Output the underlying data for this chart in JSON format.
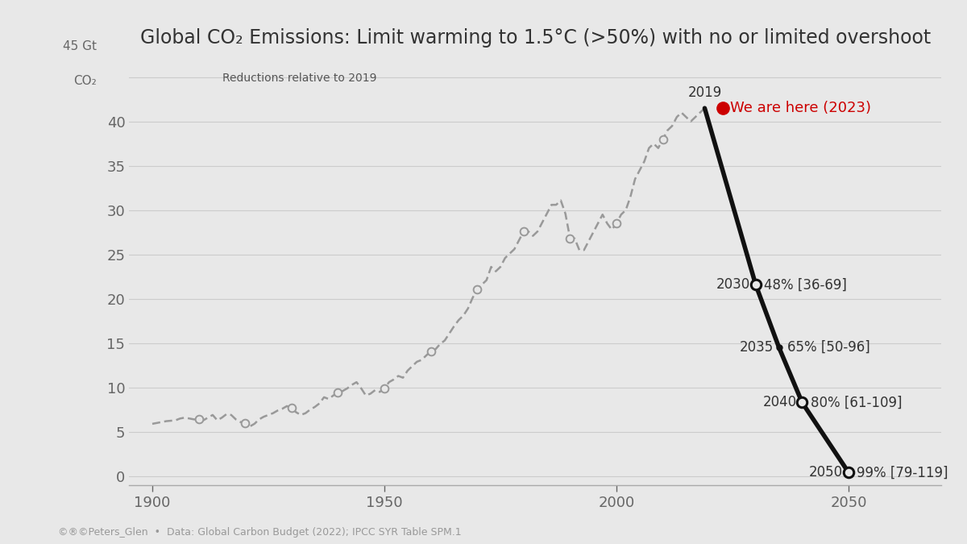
{
  "title": "Global CO₂ Emissions: Limit warming to 1.5°C (>50%) with no or limited overshoot",
  "subtitle": "Reductions relative to 2019",
  "footer": "©®©Peters_Glen  •  Data: Global Carbon Budget (2022); IPCC SYR Table SPM.1",
  "background_color": "#e8e8e8",
  "historical_years": [
    1900,
    1901,
    1902,
    1903,
    1904,
    1905,
    1906,
    1907,
    1908,
    1909,
    1910,
    1911,
    1912,
    1913,
    1914,
    1915,
    1916,
    1917,
    1918,
    1919,
    1920,
    1921,
    1922,
    1923,
    1924,
    1925,
    1926,
    1927,
    1928,
    1929,
    1930,
    1931,
    1932,
    1933,
    1934,
    1935,
    1936,
    1937,
    1938,
    1939,
    1940,
    1941,
    1942,
    1943,
    1944,
    1945,
    1946,
    1947,
    1948,
    1949,
    1950,
    1951,
    1952,
    1953,
    1954,
    1955,
    1956,
    1957,
    1958,
    1959,
    1960,
    1961,
    1962,
    1963,
    1964,
    1965,
    1966,
    1967,
    1968,
    1969,
    1970,
    1971,
    1972,
    1973,
    1974,
    1975,
    1976,
    1977,
    1978,
    1979,
    1980,
    1981,
    1982,
    1983,
    1984,
    1985,
    1986,
    1987,
    1988,
    1989,
    1990,
    1991,
    1992,
    1993,
    1994,
    1995,
    1996,
    1997,
    1998,
    1999,
    2000,
    2001,
    2002,
    2003,
    2004,
    2005,
    2006,
    2007,
    2008,
    2009,
    2010,
    2011,
    2012,
    2013,
    2014,
    2015,
    2016,
    2017,
    2018,
    2019
  ],
  "historical_values": [
    5.9,
    6.0,
    6.1,
    6.2,
    6.25,
    6.3,
    6.5,
    6.6,
    6.5,
    6.4,
    6.4,
    6.3,
    6.6,
    6.9,
    6.3,
    6.6,
    7.0,
    6.9,
    6.4,
    6.1,
    6.0,
    5.6,
    5.9,
    6.4,
    6.7,
    6.9,
    7.1,
    7.4,
    7.6,
    7.9,
    7.7,
    7.2,
    6.9,
    7.1,
    7.5,
    7.8,
    8.2,
    8.9,
    8.7,
    9.1,
    9.4,
    9.6,
    9.9,
    10.3,
    10.6,
    9.9,
    9.1,
    9.3,
    9.7,
    9.5,
    9.9,
    10.6,
    10.9,
    11.3,
    11.1,
    11.9,
    12.4,
    12.9,
    13.1,
    13.6,
    14.1,
    14.3,
    14.9,
    15.3,
    16.1,
    16.9,
    17.6,
    18.1,
    18.9,
    20.1,
    21.1,
    21.6,
    22.1,
    23.6,
    23.1,
    23.6,
    24.6,
    25.1,
    25.6,
    26.6,
    27.6,
    27.6,
    27.1,
    27.6,
    28.6,
    29.6,
    30.6,
    30.6,
    31.1,
    29.6,
    26.8,
    26.8,
    25.5,
    25.5,
    26.5,
    27.5,
    28.5,
    29.5,
    28.5,
    27.8,
    28.5,
    29.5,
    30.0,
    31.5,
    33.5,
    34.5,
    35.5,
    37.0,
    37.5,
    37.0,
    38.0,
    39.0,
    39.5,
    40.5,
    41.0,
    40.5,
    40.0,
    40.5,
    41.0,
    41.5
  ],
  "projection_years": [
    2019,
    2030,
    2035,
    2040,
    2050
  ],
  "projection_values": [
    41.5,
    21.58,
    14.525,
    8.3,
    0.415
  ],
  "decade_marker_years": [
    1910,
    1920,
    1930,
    1940,
    1950,
    1960,
    1970,
    1980,
    1990,
    2000,
    2010
  ],
  "xlim": [
    1895,
    2070
  ],
  "ylim": [
    -1,
    47
  ],
  "xticks": [
    1900,
    1950,
    2000,
    2050
  ],
  "yticks": [
    0,
    5,
    10,
    15,
    20,
    25,
    30,
    35,
    40,
    45
  ],
  "hist_line_color": "#999999",
  "hist_marker_facecolor": "#e8e8e8",
  "hist_marker_edgecolor": "#999999",
  "proj_line_color": "#111111",
  "proj_marker_facecolor": "#e8e8e8",
  "proj_marker_edgecolor": "#111111",
  "we_are_here_color": "#cc0000",
  "text_color": "#333333",
  "tick_color": "#666666",
  "grid_color": "#cccccc",
  "footer_color": "#999999",
  "title_fontsize": 17,
  "subtitle_fontsize": 10,
  "tick_fontsize": 13,
  "annot_fontsize": 12,
  "footer_fontsize": 9
}
